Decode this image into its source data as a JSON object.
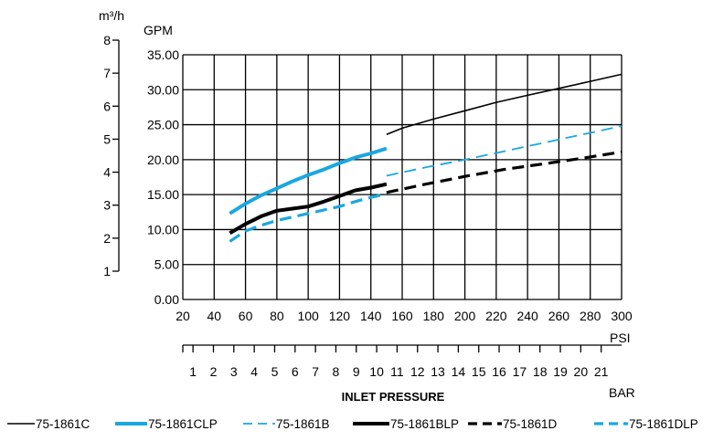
{
  "chart_data": {
    "type": "line",
    "title": "",
    "xlabel": "INLET PRESSURE",
    "x_units": {
      "primary": "PSI",
      "secondary": "BAR"
    },
    "y_units": {
      "primary": "GPM",
      "secondary": "m³/h"
    },
    "xlim": [
      20,
      300
    ],
    "ylim": [
      0,
      35
    ],
    "x_ticks": [
      "20",
      "40",
      "60",
      "80",
      "100",
      "120",
      "140",
      "160",
      "180",
      "200",
      "220",
      "240",
      "260",
      "280",
      "300"
    ],
    "y_ticks": [
      "0.00",
      "5.00",
      "10.00",
      "15.00",
      "20.00",
      "25.00",
      "30.00",
      "35.00"
    ],
    "bar_ticks": [
      "1",
      "2",
      "3",
      "4",
      "5",
      "6",
      "7",
      "8",
      "9",
      "10",
      "11",
      "12",
      "13",
      "14",
      "15",
      "16",
      "17",
      "18",
      "19",
      "20",
      "21"
    ],
    "m3h_ticks": [
      "1",
      "2",
      "3",
      "4",
      "5",
      "6",
      "7",
      "8"
    ],
    "grid": true,
    "legend_position": "bottom",
    "series": [
      {
        "name": "75-1861C",
        "color": "#000000",
        "style": "solid-thin",
        "x": [
          150,
          160,
          180,
          200,
          220,
          240,
          260,
          280,
          300
        ],
        "y": [
          23.6,
          24.5,
          25.8,
          27.0,
          28.2,
          29.2,
          30.2,
          31.2,
          32.2
        ]
      },
      {
        "name": "75-1861CLP",
        "color": "#1aa7e0",
        "style": "solid-thick",
        "x": [
          50,
          60,
          70,
          80,
          90,
          100,
          110,
          120,
          130,
          140,
          150
        ],
        "y": [
          12.3,
          13.7,
          14.9,
          15.9,
          16.9,
          17.8,
          18.6,
          19.5,
          20.3,
          20.9,
          21.6
        ]
      },
      {
        "name": "75-1861B",
        "color": "#1aa7e0",
        "style": "dashed-thin",
        "x": [
          150,
          175,
          200,
          225,
          250,
          275,
          300
        ],
        "y": [
          17.7,
          18.9,
          20.0,
          21.2,
          22.4,
          23.6,
          24.8
        ]
      },
      {
        "name": "75-1861BLP",
        "color": "#000000",
        "style": "solid-thick",
        "x": [
          50,
          60,
          70,
          80,
          90,
          100,
          110,
          120,
          130,
          140,
          150
        ],
        "y": [
          9.5,
          10.8,
          11.9,
          12.7,
          13.0,
          13.3,
          14.0,
          14.8,
          15.6,
          16.0,
          16.5
        ]
      },
      {
        "name": "75-1861D",
        "color": "#000000",
        "style": "dashed-thick",
        "x": [
          150,
          175,
          200,
          225,
          250,
          275,
          300
        ],
        "y": [
          15.3,
          16.5,
          17.6,
          18.6,
          19.4,
          20.2,
          21.1
        ]
      },
      {
        "name": "75-1861DLP",
        "color": "#1aa7e0",
        "style": "dashed-thick",
        "x": [
          50,
          60,
          70,
          80,
          90,
          100,
          110,
          120,
          130,
          140,
          150
        ],
        "y": [
          8.3,
          9.8,
          10.6,
          11.3,
          11.8,
          12.3,
          12.8,
          13.3,
          14.0,
          14.6,
          15.1
        ]
      }
    ]
  }
}
